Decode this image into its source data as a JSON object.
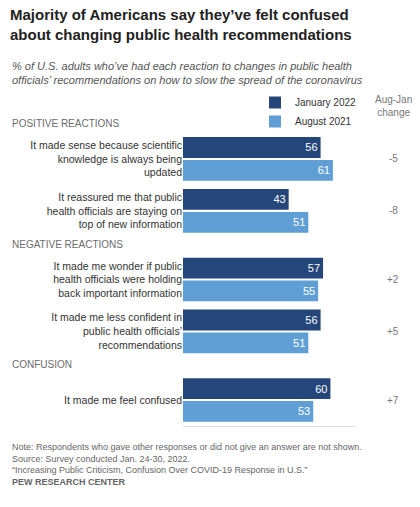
{
  "chart_data": {
    "type": "bar",
    "orientation": "horizontal",
    "title": "Majority of Americans say they’ve felt confused about changing public health recommendations",
    "subtitle": "% of U.S. adults who’ve had each reaction to changes in public health officials’ recommendations on how to slow the spread of the coronavirus",
    "categories": [
      "It made sense because scientific knowledge is always being updated",
      "It reassured me that public health officials are staying on top of new information",
      "It made me wonder if public health officials were holding back important information",
      "It made me less confident in public health officials’ recommendations",
      "It made me feel confused"
    ],
    "sections": [
      {
        "label": "POSITIVE REACTIONS",
        "categories": [
          "It made sense because scientific knowledge is always being updated",
          "It reassured me that public health officials are staying on top of new information"
        ]
      },
      {
        "label": "NEGATIVE REACTIONS",
        "categories": [
          "It made me wonder if public health officials were holding back important information",
          "It made me less confident in public health officials’ recommendations"
        ]
      },
      {
        "label": "CONFUSION",
        "categories": [
          "It made me feel confused"
        ]
      }
    ],
    "series": [
      {
        "name": "January 2022",
        "color": "#24467a",
        "values": [
          56,
          43,
          57,
          56,
          60
        ]
      },
      {
        "name": "August 2021",
        "color": "#5f9fd6",
        "values": [
          61,
          51,
          55,
          51,
          53
        ]
      }
    ],
    "change": {
      "title": "Aug-Jan change",
      "values": [
        -5,
        -8,
        2,
        5,
        7
      ],
      "value_labels": [
        "-5",
        "-8",
        "+2",
        "+5",
        "+7"
      ]
    },
    "xlim": [
      0,
      70
    ],
    "xticks": [],
    "tick_labels": "y",
    "data_labels": true,
    "legend": "top right",
    "grid": false,
    "notes": [
      "Note: Respondents who gave other responses or did not give an answer are not shown.",
      "Source: Survey conducted Jan. 24-30, 2022.",
      "“Increasing Public Criticism, Confusion Over COVID-19 Response in U.S.”"
    ],
    "credit": "PEW RESEARCH CENTER"
  }
}
